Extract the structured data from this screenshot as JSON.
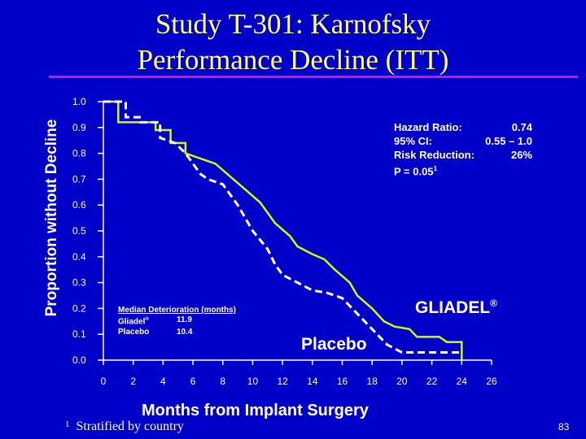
{
  "slide": {
    "title_line1": "Study T-301:  Karnofsky",
    "title_line2": "Performance Decline (ITT)",
    "footnote_mark": "1",
    "footnote_text": "Stratified by country",
    "page_number": "83",
    "background_color": "#0000c8",
    "title_color": "#ffff66",
    "rule_color": "#c020c0"
  },
  "stats_box": {
    "hazard_label": "Hazard Ratio:",
    "hazard_value": "0.74",
    "ci_label": "95% CI:",
    "ci_value": "0.55 – 1.0",
    "rr_label": "Risk Reduction:",
    "rr_value": "26%",
    "p_text": "P = 0.05",
    "p_sup": "1"
  },
  "median_box": {
    "heading": "Median Deterioration (months)",
    "rows": [
      {
        "name": "Gliadel",
        "sup": "®",
        "value": "11.9"
      },
      {
        "name": "Placebo",
        "sup": "",
        "value": "10.4"
      }
    ]
  },
  "series_labels": {
    "gliadel": "GLIADEL",
    "gliadel_sup": "®",
    "placebo": "Placebo"
  },
  "chart_data": {
    "type": "line",
    "title": "Study T-301:  Karnofsky Performance Decline (ITT)",
    "xlabel": "Months from Implant Surgery",
    "ylabel": "Proportion without Decline",
    "xlim": [
      0,
      26
    ],
    "ylim": [
      0,
      1.0
    ],
    "x_ticks": [
      0,
      2,
      4,
      6,
      8,
      10,
      12,
      14,
      16,
      18,
      20,
      22,
      24,
      26
    ],
    "y_ticks": [
      0.0,
      0.1,
      0.2,
      0.3,
      0.4,
      0.5,
      0.6,
      0.7,
      0.8,
      0.9,
      1.0
    ],
    "y_tick_labels": [
      "0.0",
      "0.1",
      "0.2",
      "0.3",
      "0.4",
      "0.5",
      "0.6",
      "0.7",
      "0.8",
      "0.9",
      "1.0"
    ],
    "grid": false,
    "series": [
      {
        "name": "GLIADEL®",
        "style": "solid",
        "color": "#ccff00",
        "points": [
          [
            0,
            1.0
          ],
          [
            1.0,
            1.0
          ],
          [
            1.0,
            0.92
          ],
          [
            3.5,
            0.92
          ],
          [
            3.5,
            0.89
          ],
          [
            4.5,
            0.89
          ],
          [
            4.5,
            0.84
          ],
          [
            5.5,
            0.84
          ],
          [
            5.5,
            0.8
          ],
          [
            6.5,
            0.78
          ],
          [
            7.5,
            0.76
          ],
          [
            8.5,
            0.71
          ],
          [
            9.5,
            0.66
          ],
          [
            10.5,
            0.61
          ],
          [
            11.5,
            0.53
          ],
          [
            12.5,
            0.48
          ],
          [
            13.0,
            0.44
          ],
          [
            14.0,
            0.41
          ],
          [
            14.8,
            0.39
          ],
          [
            15.5,
            0.35
          ],
          [
            16.5,
            0.3
          ],
          [
            17.0,
            0.25
          ],
          [
            18.0,
            0.2
          ],
          [
            18.8,
            0.15
          ],
          [
            19.5,
            0.13
          ],
          [
            20.5,
            0.12
          ],
          [
            21.0,
            0.09
          ],
          [
            22.5,
            0.09
          ],
          [
            23.0,
            0.07
          ],
          [
            24.0,
            0.07
          ],
          [
            24.0,
            0.0
          ]
        ]
      },
      {
        "name": "Placebo",
        "style": "dashed",
        "color": "#ffffff",
        "points": [
          [
            0,
            1.0
          ],
          [
            1.5,
            1.0
          ],
          [
            1.5,
            0.94
          ],
          [
            2.5,
            0.94
          ],
          [
            2.5,
            0.92
          ],
          [
            3.8,
            0.92
          ],
          [
            3.8,
            0.86
          ],
          [
            4.8,
            0.84
          ],
          [
            5.5,
            0.8
          ],
          [
            6.0,
            0.76
          ],
          [
            6.5,
            0.72
          ],
          [
            7.0,
            0.7
          ],
          [
            8.0,
            0.68
          ],
          [
            9.0,
            0.6
          ],
          [
            9.5,
            0.55
          ],
          [
            10.0,
            0.5
          ],
          [
            11.0,
            0.43
          ],
          [
            11.5,
            0.37
          ],
          [
            12.0,
            0.33
          ],
          [
            13.0,
            0.3
          ],
          [
            14.0,
            0.27
          ],
          [
            15.0,
            0.26
          ],
          [
            16.0,
            0.24
          ],
          [
            17.0,
            0.18
          ],
          [
            18.0,
            0.12
          ],
          [
            19.0,
            0.06
          ],
          [
            20.0,
            0.03
          ],
          [
            24.0,
            0.03
          ]
        ]
      }
    ]
  }
}
